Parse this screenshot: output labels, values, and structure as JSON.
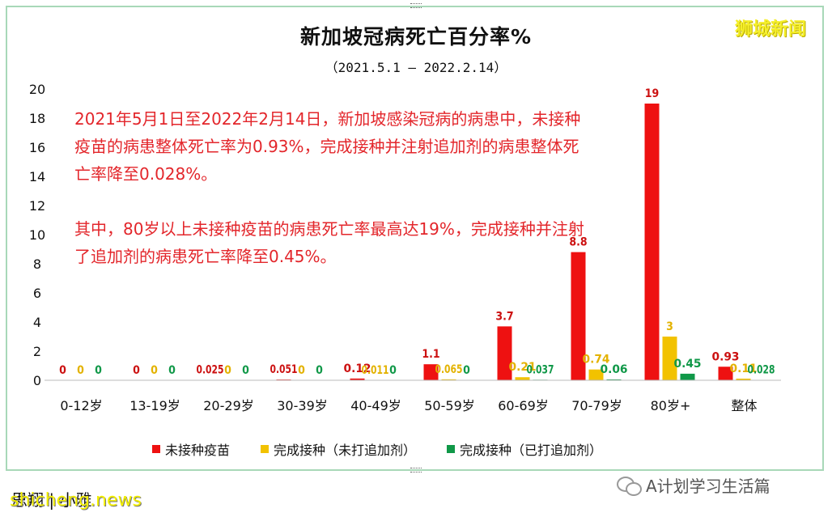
{
  "header": {
    "title": "新加坡冠病死亡百分率%",
    "subtitle": "（2021.5.1 – 2022.2.14）",
    "brand": "狮城新闻"
  },
  "annotation": {
    "para1": "2021年5月1日至2022年2月14日，新加坡感染冠病的病患中，未接种疫苗的病患整体死亡率为0.93%，完成接种并注射追加剂的病患整体死亡率降至0.028%。",
    "para2": "其中，80岁以上未接种疫苗的病患死亡率最高达19%，完成接种并注射了追加剂的病患死亡率降至0.45%。"
  },
  "watermarks": {
    "left_a": "思翔 | 小雅",
    "left_b": "shicheng.news",
    "right": "A计划学习生活篇"
  },
  "colors": {
    "unvaccinated": "#ee1111",
    "completed_no_booster": "#f2c200",
    "completed_booster": "#109848",
    "label_unvaccinated": "#cc1111",
    "label_completed_no_booster": "#e3b200",
    "label_completed_booster": "#109848"
  },
  "chart_data": {
    "type": "bar",
    "categories": [
      "0-12岁",
      "13-19岁",
      "20-29岁",
      "30-39岁",
      "40-49岁",
      "50-59岁",
      "60-69岁",
      "70-79岁",
      "80岁+",
      "整体"
    ],
    "series": [
      {
        "name": "未接种疫苗",
        "values": [
          0,
          0,
          0.025,
          0.051,
          0.12,
          1.1,
          3.7,
          8.8,
          19,
          0.93
        ],
        "labels": [
          "0",
          "0",
          "0.025",
          "0.051",
          "0.12",
          "1.1",
          "3.7",
          "8.8",
          "19",
          "0.93"
        ]
      },
      {
        "name": "完成接种（未打追加剂）",
        "values": [
          0,
          0,
          0,
          0,
          0.011,
          0.065,
          0.21,
          0.74,
          3,
          0.11
        ],
        "labels": [
          "0",
          "0",
          "0",
          "0",
          "0.011",
          "0.065",
          "0.21",
          "0.74",
          "3",
          "0.11"
        ]
      },
      {
        "name": "完成接种（已打追加剂）",
        "values": [
          0,
          0,
          0,
          0,
          0,
          0,
          0.037,
          0.06,
          0.45,
          0.028
        ],
        "labels": [
          "0",
          "0",
          "0",
          "0",
          "0",
          "0",
          "0.037",
          "0.06",
          "0.45",
          "0.028"
        ]
      }
    ],
    "yticks": [
      "0",
      "2",
      "4",
      "6",
      "8",
      "10",
      "12",
      "14",
      "16",
      "18",
      "20"
    ],
    "ylim": [
      0,
      20
    ],
    "grid": false,
    "legend_position": "bottom"
  }
}
